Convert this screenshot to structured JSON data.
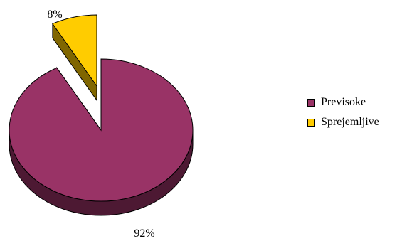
{
  "chart_data": {
    "type": "pie",
    "style": "3d-exploded",
    "slices": [
      {
        "name": "Previsoke",
        "value": 92,
        "label": "92%",
        "color": "#993366",
        "side_color": "#4D1933"
      },
      {
        "name": "Sprejemljive",
        "value": 8,
        "label": "8%",
        "color": "#FFCC00",
        "side_color": "#806600"
      }
    ],
    "legend_position": "right"
  }
}
